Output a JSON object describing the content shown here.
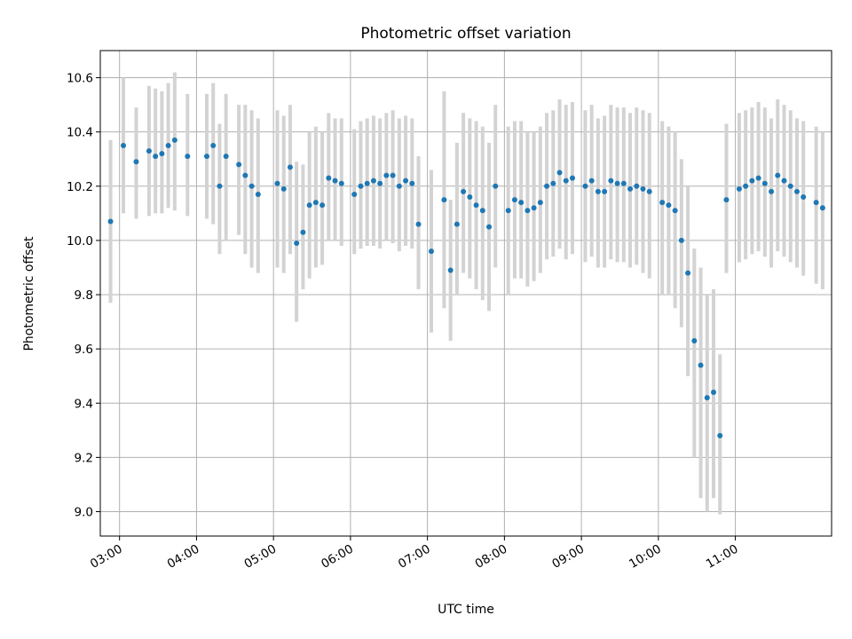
{
  "chart_data": {
    "type": "scatter",
    "title": "Photometric offset variation",
    "xlabel": "UTC time",
    "ylabel": "Photometric offset",
    "grid": true,
    "x_range": [
      "02:45",
      "12:15"
    ],
    "ylim": [
      8.91,
      10.7
    ],
    "x_ticks": [
      "03:00",
      "04:00",
      "05:00",
      "06:00",
      "07:00",
      "08:00",
      "09:00",
      "10:00",
      "11:00"
    ],
    "y_ticks": [
      "9.0",
      "9.2",
      "9.4",
      "9.6",
      "9.8",
      "10.0",
      "10.2",
      "10.4",
      "10.6"
    ],
    "colors": {
      "points": "#1f77b4",
      "error_bars": "#d3d3d3"
    },
    "series": [
      {
        "x": [
          "02:53",
          "03:03",
          "03:13",
          "03:23",
          "03:28",
          "03:33",
          "03:38",
          "03:43",
          "03:53",
          "04:08",
          "04:13",
          "04:18",
          "04:23",
          "04:33",
          "04:38",
          "04:43",
          "04:48",
          "05:03",
          "05:08",
          "05:13",
          "05:18",
          "05:23",
          "05:28",
          "05:33",
          "05:38",
          "05:43",
          "05:48",
          "05:53",
          "06:03",
          "06:08",
          "06:13",
          "06:18",
          "06:23",
          "06:28",
          "06:33",
          "06:38",
          "06:43",
          "06:48",
          "06:53",
          "07:03",
          "07:13",
          "07:18",
          "07:23",
          "07:28",
          "07:33",
          "07:38",
          "07:43",
          "07:48",
          "07:53",
          "08:03",
          "08:08",
          "08:13",
          "08:18",
          "08:23",
          "08:28",
          "08:33",
          "08:38",
          "08:43",
          "08:48",
          "08:53",
          "09:03",
          "09:08",
          "09:13",
          "09:18",
          "09:23",
          "09:28",
          "09:33",
          "09:38",
          "09:43",
          "09:48",
          "09:53",
          "10:03",
          "10:08",
          "10:13",
          "10:18",
          "10:23",
          "10:28",
          "10:33",
          "10:38",
          "10:43",
          "10:48",
          "10:53",
          "11:03",
          "11:08",
          "11:13",
          "11:18",
          "11:23",
          "11:28",
          "11:33",
          "11:38",
          "11:43",
          "11:48",
          "11:53",
          "12:03",
          "12:08"
        ],
        "y": [
          10.07,
          10.35,
          10.29,
          10.33,
          10.31,
          10.32,
          10.35,
          10.37,
          10.31,
          10.31,
          10.35,
          10.2,
          10.31,
          10.28,
          10.24,
          10.2,
          10.17,
          10.21,
          10.19,
          10.27,
          9.99,
          10.03,
          10.13,
          10.14,
          10.13,
          10.23,
          10.22,
          10.21,
          10.17,
          10.2,
          10.21,
          10.22,
          10.21,
          10.24,
          10.24,
          10.2,
          10.22,
          10.21,
          10.06,
          9.96,
          10.15,
          9.89,
          10.06,
          10.18,
          10.16,
          10.13,
          10.11,
          10.05,
          10.2,
          10.11,
          10.15,
          10.14,
          10.11,
          10.12,
          10.14,
          10.2,
          10.21,
          10.25,
          10.22,
          10.23,
          10.2,
          10.22,
          10.18,
          10.18,
          10.22,
          10.21,
          10.21,
          10.19,
          10.2,
          10.19,
          10.18,
          10.14,
          10.13,
          10.11,
          10.0,
          9.88,
          9.63,
          9.54,
          9.42,
          9.44,
          9.28,
          10.15,
          10.19,
          10.2,
          10.22,
          10.23,
          10.21,
          10.18,
          10.24,
          10.22,
          10.2,
          10.18,
          10.16,
          10.14,
          10.12
        ],
        "err_low": [
          9.77,
          10.1,
          10.08,
          10.09,
          10.1,
          10.1,
          10.12,
          10.11,
          10.09,
          10.08,
          10.06,
          9.95,
          10.0,
          10.02,
          9.95,
          9.9,
          9.88,
          9.9,
          9.88,
          9.95,
          9.7,
          9.82,
          9.86,
          9.9,
          9.91,
          10.0,
          10.0,
          9.98,
          9.95,
          9.97,
          9.98,
          9.98,
          9.97,
          10.0,
          9.99,
          9.96,
          9.98,
          9.97,
          9.82,
          9.66,
          9.75,
          9.63,
          9.8,
          9.88,
          9.86,
          9.82,
          9.78,
          9.74,
          9.9,
          9.8,
          9.86,
          9.86,
          9.83,
          9.85,
          9.88,
          9.93,
          9.94,
          9.97,
          9.93,
          9.95,
          9.92,
          9.94,
          9.9,
          9.9,
          9.93,
          9.92,
          9.92,
          9.9,
          9.91,
          9.88,
          9.86,
          9.8,
          9.8,
          9.75,
          9.68,
          9.5,
          9.2,
          9.05,
          9.0,
          9.05,
          8.99,
          9.88,
          9.92,
          9.93,
          9.95,
          9.96,
          9.94,
          9.9,
          9.96,
          9.94,
          9.92,
          9.9,
          9.87,
          9.84,
          9.82
        ],
        "err_high": [
          10.37,
          10.6,
          10.49,
          10.57,
          10.56,
          10.55,
          10.58,
          10.62,
          10.54,
          10.54,
          10.58,
          10.43,
          10.54,
          10.5,
          10.5,
          10.48,
          10.45,
          10.48,
          10.46,
          10.5,
          10.29,
          10.28,
          10.4,
          10.42,
          10.4,
          10.47,
          10.45,
          10.45,
          10.41,
          10.44,
          10.45,
          10.46,
          10.45,
          10.47,
          10.48,
          10.45,
          10.46,
          10.45,
          10.31,
          10.26,
          10.55,
          10.15,
          10.36,
          10.47,
          10.45,
          10.44,
          10.42,
          10.36,
          10.5,
          10.42,
          10.44,
          10.44,
          10.4,
          10.4,
          10.42,
          10.47,
          10.48,
          10.52,
          10.5,
          10.51,
          10.48,
          10.5,
          10.45,
          10.46,
          10.5,
          10.49,
          10.49,
          10.47,
          10.49,
          10.48,
          10.47,
          10.44,
          10.42,
          10.4,
          10.3,
          10.2,
          9.97,
          9.9,
          9.8,
          9.82,
          9.58,
          10.43,
          10.47,
          10.48,
          10.49,
          10.51,
          10.49,
          10.45,
          10.52,
          10.5,
          10.48,
          10.45,
          10.44,
          10.42,
          10.4
        ]
      }
    ]
  }
}
